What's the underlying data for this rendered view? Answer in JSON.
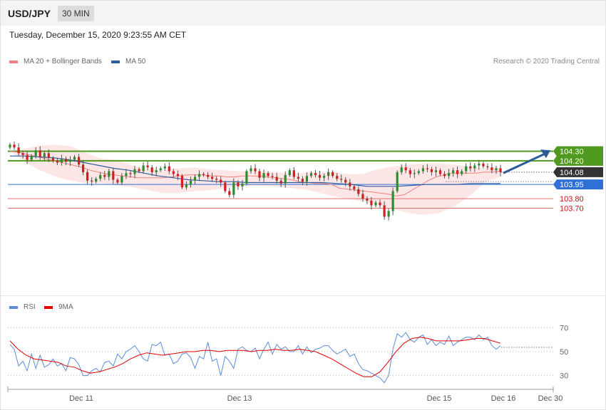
{
  "header": {
    "symbol": "USD/JPY",
    "timeframe": "30 MIN"
  },
  "datetime": "Tuesday, December 15, 2020 9:23:55 AM CET",
  "copyright": "Research © 2020 Trading Central",
  "legend_top": [
    {
      "label": "MA 20 + Bollinger Bands",
      "color": "#f08080"
    },
    {
      "label": "MA 50",
      "color": "#2d5fa0"
    }
  ],
  "legend_bottom": [
    {
      "label": "RSI",
      "color": "#5b8ed8"
    },
    {
      "label": "9MA",
      "color": "#e00000"
    }
  ],
  "chart_data": [
    {
      "type": "candlestick",
      "title": "USD/JPY 30 MIN",
      "x_ticks": [
        "Dec 11",
        "Dec 13",
        "Dec 15",
        "Dec 16",
        "Dec 30"
      ],
      "ylim": [
        103.6,
        104.4
      ],
      "last_price": "104.08",
      "levels": [
        {
          "value": 104.3,
          "label": "104.30",
          "role": "resistance",
          "color": "#4f9a1f"
        },
        {
          "value": 104.2,
          "label": "104.20",
          "role": "resistance",
          "color": "#4f9a1f"
        },
        {
          "value": 103.95,
          "label": "103.95",
          "role": "pivot",
          "color": "#2f6fd8"
        },
        {
          "value": 103.8,
          "label": "103.80",
          "role": "support",
          "color": "#e07070"
        },
        {
          "value": 103.7,
          "label": "103.70",
          "role": "support",
          "color": "#e07070"
        }
      ],
      "closes": [
        104.37,
        104.34,
        104.28,
        104.26,
        104.21,
        104.25,
        104.31,
        104.24,
        104.28,
        104.23,
        104.2,
        104.18,
        104.22,
        104.19,
        104.21,
        104.24,
        104.16,
        104.08,
        103.99,
        103.98,
        104.01,
        104.05,
        104.03,
        104.09,
        104.0,
        103.97,
        104.04,
        104.07,
        104.06,
        104.11,
        104.09,
        104.15,
        104.13,
        104.08,
        104.1,
        104.12,
        104.14,
        104.09,
        104.06,
        104.04,
        103.92,
        103.95,
        103.99,
        104.03,
        104.06,
        104.05,
        104.03,
        104.01,
        104.0,
        103.97,
        103.88,
        103.84,
        103.97,
        103.93,
        103.96,
        104.09,
        104.12,
        104.09,
        104.02,
        104.07,
        104.04,
        104.03,
        103.99,
        103.96,
        104.05,
        104.1,
        104.03,
        104.01,
        103.98,
        104.04,
        104.07,
        104.05,
        104.02,
        104.04,
        104.08,
        104.04,
        104.01,
        104.0,
        103.97,
        103.93,
        103.9,
        103.85,
        103.8,
        103.78,
        103.73,
        103.76,
        103.73,
        103.61,
        103.67,
        103.88,
        104.08,
        104.13,
        104.1,
        104.06,
        104.07,
        104.09,
        104.12,
        104.11,
        104.08,
        104.1,
        104.06,
        104.04,
        104.07,
        104.1,
        104.06,
        104.09,
        104.14,
        104.12,
        104.15,
        104.17,
        104.14,
        104.13,
        104.1,
        104.12,
        104.08
      ],
      "ma20": [
        104.3,
        104.29,
        104.27,
        104.25,
        104.23,
        104.21,
        104.19,
        104.17,
        104.15,
        104.13,
        104.1,
        104.08,
        104.06,
        104.05,
        104.04,
        104.03,
        104.02,
        104.02,
        104.02,
        104.02,
        104.03,
        104.04,
        104.05,
        104.05,
        104.05,
        104.04,
        104.04,
        104.03,
        104.03,
        104.04,
        104.04,
        104.04,
        104.03,
        104.02,
        104.01,
        104.0,
        103.98,
        103.97,
        103.96,
        103.96,
        103.95,
        103.91,
        103.9,
        103.89,
        103.88,
        103.87,
        103.86,
        103.85,
        103.83,
        103.84,
        103.89,
        103.94,
        103.99,
        104.03,
        104.05,
        104.07,
        104.07,
        104.07,
        104.07,
        104.08,
        104.08,
        104.09
      ],
      "ma50": [
        104.25,
        104.25,
        104.24,
        104.23,
        104.21,
        104.18,
        104.15,
        104.12,
        104.1,
        104.07,
        104.04,
        104.02,
        104.0,
        103.99,
        103.98,
        103.98,
        103.97,
        103.97,
        103.97,
        103.97,
        103.97,
        103.97,
        103.96,
        103.95,
        103.93,
        103.93,
        103.93,
        103.94,
        103.95,
        103.95,
        103.95,
        103.96,
        103.96,
        103.96
      ],
      "bb_upper": [
        104.29,
        104.33,
        104.36,
        104.37,
        104.35,
        104.28,
        104.22,
        104.21,
        104.15,
        104.11,
        104.1,
        104.12,
        104.13,
        104.11,
        104.1,
        104.09,
        104.09,
        104.08,
        104.07,
        104.07,
        104.08,
        104.08,
        104.06,
        104.06,
        104.11,
        104.14,
        104.16,
        104.17,
        104.17,
        104.16,
        104.14,
        104.12,
        104.13
      ],
      "bb_lower": [
        104.3,
        104.18,
        104.1,
        104.03,
        103.99,
        103.96,
        103.96,
        103.94,
        103.92,
        103.89,
        103.86,
        103.86,
        103.88,
        103.89,
        103.91,
        103.93,
        103.94,
        103.93,
        103.92,
        103.9,
        103.87,
        103.83,
        103.8,
        103.77,
        103.74,
        103.69,
        103.65,
        103.63,
        103.65,
        103.72,
        103.83,
        103.98,
        104.03
      ]
    },
    {
      "type": "line",
      "title": "RSI",
      "ylim": [
        20,
        80
      ],
      "y_ticks": [
        "70",
        "50",
        "30"
      ],
      "reference_level": 50,
      "series": [
        {
          "name": "RSI",
          "values": [
            56,
            52,
            38,
            42,
            34,
            48,
            36,
            47,
            37,
            39,
            44,
            38,
            40,
            34,
            45,
            44,
            39,
            30,
            30,
            34,
            36,
            33,
            41,
            42,
            38,
            48,
            44,
            50,
            52,
            55,
            50,
            44,
            42,
            56,
            55,
            58,
            47,
            48,
            40,
            42,
            48,
            49,
            45,
            36,
            46,
            44,
            58,
            42,
            44,
            30,
            46,
            42,
            36,
            52,
            54,
            51,
            50,
            53,
            44,
            52,
            58,
            48,
            56,
            52,
            54,
            50,
            50,
            55,
            48,
            54,
            49,
            52,
            53,
            55,
            55,
            51,
            48,
            50,
            52,
            46,
            48,
            40,
            35,
            34,
            32,
            30,
            28,
            24,
            30,
            52,
            65,
            62,
            66,
            60,
            58,
            62,
            64,
            56,
            60,
            55,
            58,
            56,
            63,
            55,
            58,
            60,
            62,
            62,
            60,
            64,
            60,
            62,
            55,
            52,
            55
          ]
        },
        {
          "name": "9MA",
          "values": [
            59,
            52,
            47,
            44,
            43,
            42,
            41,
            38,
            37,
            34,
            32,
            33,
            35,
            37,
            40,
            44,
            47,
            49,
            48,
            47,
            48,
            49,
            50,
            50,
            51,
            51,
            50,
            51,
            51,
            51,
            50,
            51,
            51,
            52,
            51,
            51,
            52,
            51,
            50,
            47,
            44,
            40,
            36,
            32,
            29,
            29,
            33,
            41,
            50,
            57,
            61,
            62,
            61,
            59,
            59,
            59,
            59,
            60,
            61,
            61,
            59,
            57
          ]
        }
      ]
    }
  ]
}
